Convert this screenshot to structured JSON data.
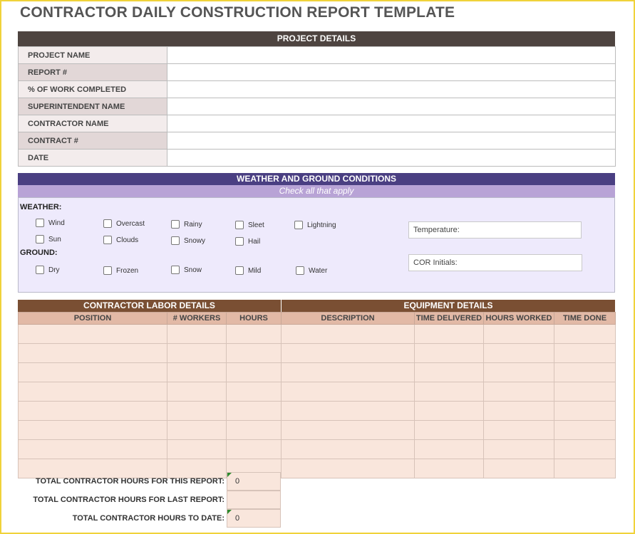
{
  "title": "CONTRACTOR DAILY CONSTRUCTION REPORT TEMPLATE",
  "project": {
    "header": "PROJECT DETAILS",
    "rows": [
      "PROJECT NAME",
      "REPORT #",
      "% OF WORK COMPLETED",
      "SUPERINTENDENT NAME",
      "CONTRACTOR NAME",
      "CONTRACT #",
      "DATE"
    ]
  },
  "weather": {
    "header": "WEATHER AND GROUND CONDITIONS",
    "subheader": "Check all that apply",
    "weather_label": "WEATHER:",
    "weather_options": [
      "Wind",
      "Overcast",
      "Rainy",
      "Sleet",
      "Lightning",
      "Sun",
      "Clouds",
      "Snowy",
      "Hail"
    ],
    "ground_label": "GROUND:",
    "ground_options": [
      "Dry",
      "Frozen",
      "Snow",
      "Mild",
      "Water"
    ],
    "temperature_placeholder": "Temperature:",
    "cor_placeholder": "COR Initials:"
  },
  "labor": {
    "header": "CONTRACTOR LABOR DETAILS",
    "columns": [
      "POSITION",
      "# WORKERS",
      "HOURS"
    ]
  },
  "equipment": {
    "header": "EQUIPMENT DETAILS",
    "columns": [
      "DESCRIPTION",
      "TIME DELIVERED",
      "HOURS WORKED",
      "TIME DONE"
    ]
  },
  "totals": [
    {
      "label": "TOTAL CONTRACTOR HOURS FOR THIS REPORT:",
      "value": "0"
    },
    {
      "label": "TOTAL CONTRACTOR HOURS FOR LAST REPORT:",
      "value": ""
    },
    {
      "label": "TOTAL CONTRACTOR HOURS TO DATE:",
      "value": "0"
    }
  ],
  "colors": {
    "project_band": "#4e4440",
    "weather_band": "#4a3f82",
    "weather_subband": "#b8a3d6",
    "labor_band": "#7a4f33",
    "frame": "#f0d23a"
  }
}
